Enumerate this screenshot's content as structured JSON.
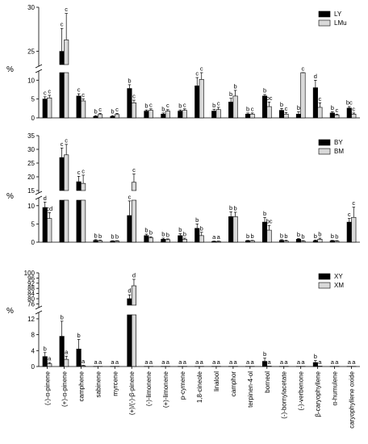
{
  "chart_data": {
    "type": "bar",
    "ylabel": "%",
    "categories": [
      "(-)-α-pinene",
      "(+)-α-pinene",
      "camphene",
      "sabinene",
      "myrcene",
      "(+)/(-)-β-pinene",
      "(-)-limonene",
      "(+)-limonene",
      "p-cymene",
      "1,8-cineole",
      "linalool",
      "camphor",
      "terpinen-4-ol",
      "borneol",
      "(-)-bornylacetate",
      "(-)-verbenone",
      "β-caryophyllene",
      "α-humulene",
      "caryophyllene oxide"
    ],
    "panels": [
      {
        "series": [
          {
            "name": "LY",
            "color": "#000000",
            "values": [
              5,
              25,
              5.8,
              0.4,
              0.4,
              7.8,
              1.8,
              1,
              1.8,
              8.5,
              1.8,
              4.2,
              1,
              5.8,
              2,
              1,
              8,
              1.3,
              2.6
            ],
            "errors": [
              0.6,
              2.6,
              0.6,
              0.2,
              0.2,
              1,
              0.3,
              0.3,
              0.3,
              2.2,
              0.5,
              1,
              0.3,
              0.4,
              0.5,
              0.6,
              2,
              0.3,
              0.4
            ],
            "sig": [
              "c",
              "c",
              "c",
              "b",
              "b",
              "b",
              "b",
              "b",
              "b",
              "c",
              "b",
              "b",
              "b",
              "b",
              "b",
              "b",
              "d",
              "b",
              "bc"
            ]
          },
          {
            "name": "LMu",
            "color": "#d9d9d9",
            "values": [
              5.3,
              26.3,
              4.5,
              0.9,
              0.9,
              4,
              2,
              1.8,
              2,
              10.2,
              2.2,
              5.8,
              1,
              3,
              1,
              12,
              2.8,
              0.8,
              1
            ],
            "errors": [
              0.7,
              3,
              0.5,
              0.3,
              0.3,
              0.7,
              0.4,
              0.4,
              0.4,
              3.2,
              0.6,
              1.5,
              0.3,
              1.2,
              0.4,
              1.5,
              1.2,
              0.2,
              0.3
            ],
            "sig": [
              "c",
              "c",
              "c",
              "c",
              "c",
              "c",
              "c",
              "c",
              "c",
              "c",
              "c",
              "b",
              "c",
              "bc",
              "c",
              "c",
              "c",
              "c",
              "c"
            ]
          }
        ],
        "y_ticks_lower": [
          0,
          5,
          10
        ],
        "y_ticks_upper": [
          25,
          30
        ]
      },
      {
        "series": [
          {
            "name": "BY",
            "color": "#000000",
            "values": [
              9.5,
              27,
              18.2,
              0.5,
              0.3,
              7.3,
              1.8,
              0.8,
              1.8,
              3.8,
              0.2,
              7,
              0.4,
              5.5,
              0.5,
              0.8,
              0.4,
              0.4,
              5.5
            ],
            "errors": [
              1.5,
              3.5,
              2,
              0.2,
              0.1,
              4,
              0.4,
              0.3,
              0.5,
              1.2,
              0.1,
              1.3,
              0.1,
              1.3,
              0.2,
              0.2,
              0.2,
              0.1,
              1
            ],
            "sig": [
              "d",
              "c",
              "c",
              "b",
              "b",
              "c",
              "b",
              "b",
              "b",
              "b",
              "a",
              "b",
              "b",
              "b",
              "b",
              "b",
              "b",
              "b",
              "c"
            ]
          },
          {
            "name": "BM",
            "color": "#d9d9d9",
            "values": [
              6.5,
              28,
              17.6,
              0.4,
              0.3,
              18,
              1.2,
              0.7,
              0.8,
              1.8,
              0.2,
              7,
              0.4,
              3.3,
              0.3,
              0.3,
              0.8,
              0.3,
              6.8
            ],
            "errors": [
              1.6,
              3.8,
              3,
              0.2,
              0.1,
              3,
              0.3,
              0.2,
              0.3,
              0.9,
              0.1,
              1.2,
              0.1,
              1.3,
              0.2,
              0.1,
              0.3,
              0.1,
              2.8
            ],
            "sig": [
              "cd",
              "c",
              "c",
              "b",
              "b",
              "c",
              "b",
              "b",
              "b",
              "b",
              "a",
              "b",
              "b",
              "bc",
              "b",
              "b",
              "b",
              "b",
              "c"
            ]
          }
        ],
        "y_ticks_lower": [
          0,
          5,
          10
        ],
        "y_ticks_upper": [
          15,
          20,
          25,
          30,
          35
        ]
      },
      {
        "series": [
          {
            "name": "XY",
            "color": "#000000",
            "values": [
              2.5,
              7.6,
              4.4,
              0.05,
              0.05,
              80,
              0.05,
              0.05,
              0.05,
              0.05,
              0.05,
              0.05,
              0.05,
              1.3,
              0.05,
              0.05,
              1,
              0.05,
              0.05
            ],
            "errors": [
              1,
              3.8,
              2.4,
              0.05,
              0.05,
              3,
              0.05,
              0.05,
              0.05,
              0.05,
              0.05,
              0.05,
              0.05,
              0.8,
              0.05,
              0.05,
              0.5,
              0.05,
              0.05
            ],
            "sig": [
              "b",
              "b",
              "b",
              "a",
              "a",
              "d",
              "a",
              "a",
              "a",
              "a",
              "a",
              "a",
              "a",
              "b",
              "a",
              "a",
              "b",
              "a",
              "a"
            ]
          },
          {
            "name": "XM",
            "color": "#d9d9d9",
            "values": [
              0.7,
              1.8,
              0.2,
              0.05,
              0.05,
              90,
              0.05,
              0.05,
              0.05,
              0.05,
              0.05,
              0.05,
              0.05,
              0.1,
              0.05,
              0.05,
              0.1,
              0.05,
              0.05
            ],
            "errors": [
              0.3,
              0.8,
              0.1,
              0.05,
              0.05,
              5,
              0.05,
              0.05,
              0.05,
              0.05,
              0.05,
              0.05,
              0.05,
              0.05,
              0.05,
              0.05,
              0.05,
              0.05,
              0.05
            ],
            "sig": [
              "a",
              "a",
              "a",
              "a",
              "a",
              "d",
              "a",
              "a",
              "a",
              "a",
              "a",
              "a",
              "a",
              "a",
              "a",
              "a",
              "a",
              "a",
              "a"
            ]
          }
        ],
        "y_ticks_lower": [
          0,
          4,
          8,
          12
        ],
        "y_ticks_upper": [
          76,
          80,
          84,
          88,
          92,
          96,
          100
        ]
      }
    ]
  }
}
